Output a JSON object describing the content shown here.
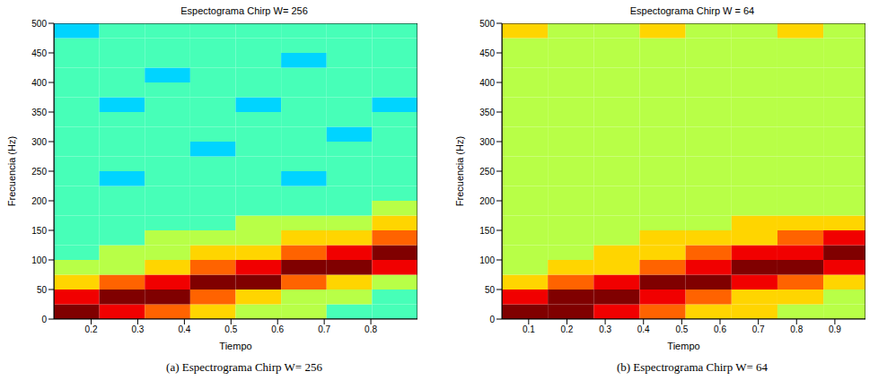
{
  "chart_data": [
    {
      "type": "heatmap",
      "title": "Espectograma Chirp W= 256",
      "caption": "(a) Espectrograma Chirp W= 256",
      "x_label": "Tiempo",
      "y_label": "Frecuencia (Hz)",
      "color": "jet",
      "xlim": [
        0.12,
        0.9
      ],
      "ylim": [
        0,
        500
      ],
      "xticks": [
        0.2,
        0.3,
        0.4,
        0.5,
        0.6,
        0.7,
        0.8
      ],
      "yticks": [
        0,
        50,
        100,
        150,
        200,
        250,
        300,
        350,
        400,
        450,
        500
      ],
      "x_bins": [
        0.12,
        0.2175,
        0.315,
        0.4125,
        0.51,
        0.6075,
        0.705,
        0.8025,
        0.9
      ],
      "y_bins": [
        0,
        25,
        50,
        75,
        100,
        125,
        150,
        175,
        200,
        225,
        250,
        275,
        300,
        325,
        350,
        375,
        400,
        425,
        450,
        475,
        500
      ],
      "clim": [
        0,
        9
      ],
      "cells": [
        [
          9,
          8,
          7,
          6,
          5,
          5,
          4,
          4
        ],
        [
          8,
          9,
          9,
          7,
          6,
          5,
          5,
          4
        ],
        [
          6,
          7,
          8,
          9,
          9,
          7,
          6,
          5
        ],
        [
          5,
          5,
          6,
          7,
          8,
          9,
          9,
          8
        ],
        [
          4,
          5,
          5,
          6,
          6,
          7,
          8,
          9
        ],
        [
          4,
          4,
          5,
          5,
          5,
          6,
          6,
          7
        ],
        [
          4,
          4,
          4,
          4,
          5,
          5,
          5,
          6
        ],
        [
          4,
          4,
          4,
          4,
          4,
          4,
          4,
          5
        ],
        [
          4,
          4,
          4,
          4,
          4,
          4,
          4,
          4
        ],
        [
          4,
          3,
          4,
          4,
          4,
          3,
          4,
          4
        ],
        [
          4,
          4,
          4,
          4,
          4,
          4,
          4,
          4
        ],
        [
          4,
          4,
          4,
          3,
          4,
          4,
          4,
          4
        ],
        [
          4,
          4,
          4,
          4,
          4,
          4,
          3,
          4
        ],
        [
          4,
          4,
          4,
          4,
          4,
          4,
          4,
          4
        ],
        [
          4,
          3,
          4,
          4,
          3,
          4,
          4,
          3
        ],
        [
          4,
          4,
          4,
          4,
          4,
          4,
          4,
          4
        ],
        [
          4,
          4,
          3,
          4,
          4,
          4,
          4,
          4
        ],
        [
          4,
          4,
          4,
          4,
          4,
          3,
          4,
          4
        ],
        [
          4,
          4,
          4,
          4,
          4,
          4,
          4,
          4
        ],
        [
          3,
          4,
          4,
          4,
          4,
          4,
          4,
          4
        ]
      ]
    },
    {
      "type": "heatmap",
      "title": "Espectograma Chirp W = 64",
      "caption": "(b) Espectrograma Chirp W= 64",
      "x_label": "Tiempo",
      "y_label": "Frecuencia (Hz)",
      "color": "jet",
      "xlim": [
        0.03,
        0.98
      ],
      "ylim": [
        0,
        500
      ],
      "xticks": [
        0.1,
        0.2,
        0.3,
        0.4,
        0.5,
        0.6,
        0.7,
        0.8,
        0.9
      ],
      "yticks": [
        0,
        50,
        100,
        150,
        200,
        250,
        300,
        350,
        400,
        450,
        500
      ],
      "x_bins": [
        0.03,
        0.15,
        0.27,
        0.39,
        0.51,
        0.63,
        0.75,
        0.87,
        0.98
      ],
      "y_bins": [
        0,
        25,
        50,
        75,
        100,
        125,
        150,
        175,
        200,
        225,
        250,
        275,
        300,
        325,
        350,
        375,
        400,
        425,
        450,
        475,
        500
      ],
      "clim": [
        0,
        9
      ],
      "cells": [
        [
          9,
          9,
          8,
          7,
          6,
          6,
          5,
          5
        ],
        [
          8,
          9,
          9,
          8,
          7,
          6,
          6,
          5
        ],
        [
          6,
          7,
          8,
          9,
          9,
          8,
          7,
          6
        ],
        [
          5,
          6,
          6,
          7,
          8,
          9,
          9,
          8
        ],
        [
          5,
          5,
          6,
          6,
          7,
          8,
          8,
          9
        ],
        [
          5,
          5,
          5,
          6,
          6,
          6,
          7,
          8
        ],
        [
          5,
          5,
          5,
          5,
          5,
          6,
          6,
          6
        ],
        [
          5,
          5,
          5,
          5,
          5,
          5,
          5,
          5
        ],
        [
          5,
          5,
          5,
          5,
          5,
          5,
          5,
          5
        ],
        [
          5,
          5,
          5,
          5,
          5,
          5,
          5,
          5
        ],
        [
          5,
          5,
          5,
          5,
          5,
          5,
          5,
          5
        ],
        [
          5,
          5,
          5,
          5,
          5,
          5,
          5,
          5
        ],
        [
          5,
          5,
          5,
          5,
          5,
          5,
          5,
          5
        ],
        [
          5,
          5,
          5,
          5,
          5,
          5,
          5,
          5
        ],
        [
          5,
          5,
          5,
          5,
          5,
          5,
          5,
          5
        ],
        [
          5,
          5,
          5,
          5,
          5,
          5,
          5,
          5
        ],
        [
          5,
          5,
          5,
          5,
          5,
          5,
          5,
          5
        ],
        [
          5,
          5,
          5,
          5,
          5,
          5,
          5,
          5
        ],
        [
          5,
          5,
          5,
          5,
          5,
          5,
          5,
          5
        ],
        [
          6,
          5,
          5,
          6,
          5,
          5,
          6,
          5
        ]
      ]
    }
  ]
}
